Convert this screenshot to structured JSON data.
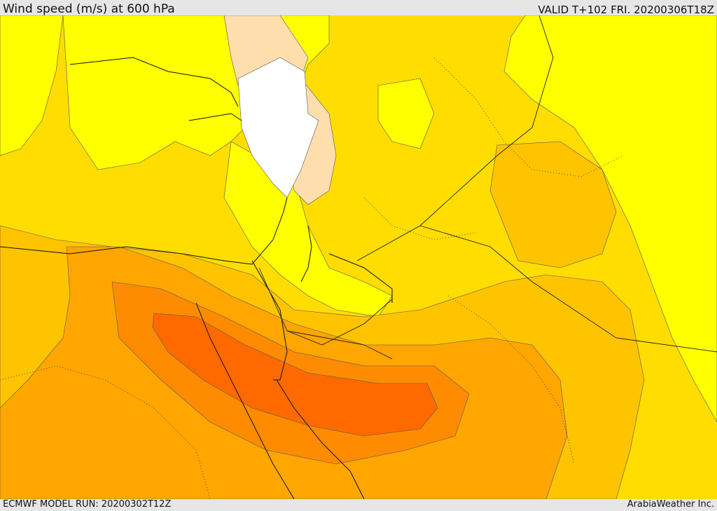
{
  "header": {
    "title": "Wind speed (m/s) at 600 hPa",
    "valid": "VALID T+102 FRI. 20200306T18Z"
  },
  "footer": {
    "model_run": "ECMWF MODEL RUN: 20200302T12Z",
    "credit": "ArabiaWeather Inc."
  },
  "colors": {
    "band_5_10": "#ffff00",
    "band_10_15": "#ffdd00",
    "band_15_20": "#ffc400",
    "band_20_25": "#ffa600",
    "band_25_30": "#ff8c00",
    "band_30_35": "#ff6a00",
    "band_low": "#ffdead",
    "band_calm": "#ffffff"
  }
}
